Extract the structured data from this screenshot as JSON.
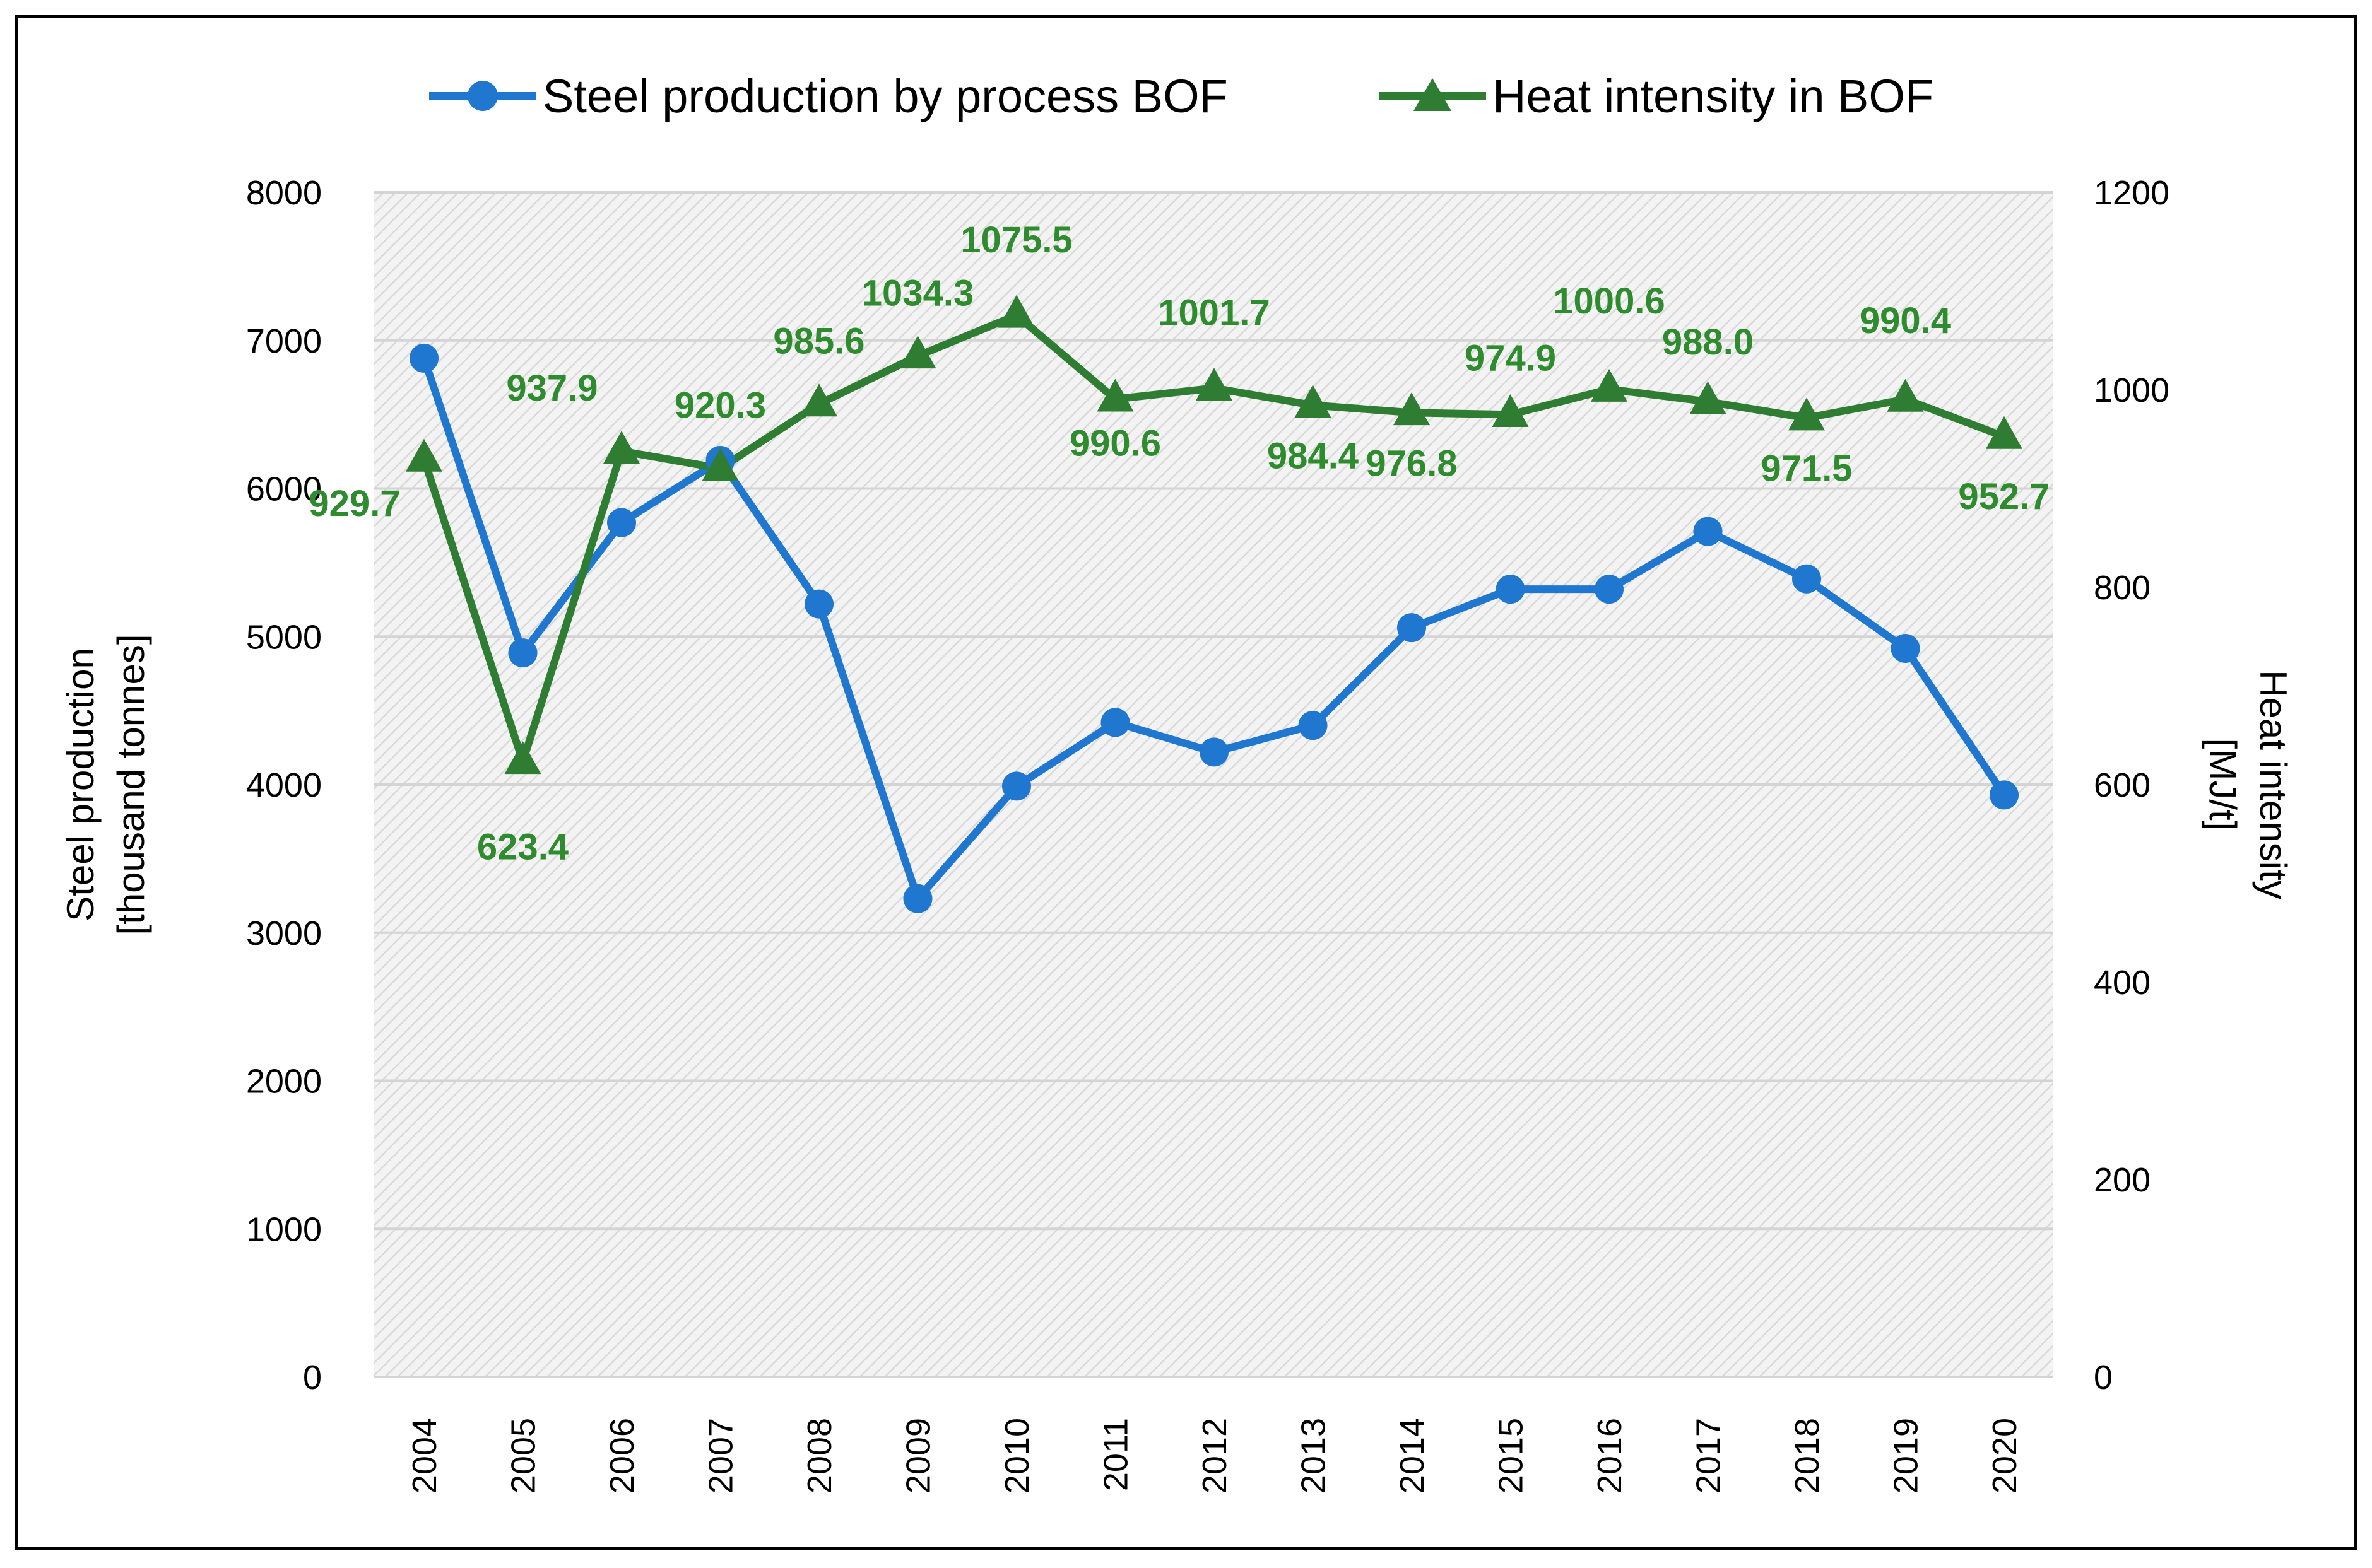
{
  "chart_data": {
    "type": "line",
    "categories": [
      "2004",
      "2005",
      "2006",
      "2007",
      "2008",
      "2009",
      "2010",
      "2011",
      "2012",
      "2013",
      "2014",
      "2015",
      "2016",
      "2017",
      "2018",
      "2019",
      "2020"
    ],
    "series": [
      {
        "name": "Steel production by process BOF",
        "axis": "left",
        "marker": "circle",
        "color": "#1f77d0",
        "values": [
          6880,
          4890,
          5770,
          6190,
          5220,
          3230,
          3990,
          4420,
          4220,
          4400,
          5060,
          5320,
          5320,
          5710,
          5390,
          4920,
          3930
        ]
      },
      {
        "name": "Heat intensity in BOF",
        "axis": "right",
        "marker": "triangle",
        "color": "#2e7d32",
        "values": [
          929.7,
          623.4,
          937.9,
          920.3,
          985.6,
          1034.3,
          1075.5,
          990.6,
          1001.7,
          984.4,
          976.8,
          974.9,
          1000.6,
          988.0,
          971.5,
          990.4,
          952.7
        ],
        "labels": [
          "929.7",
          "623.4",
          "937.9",
          "920.3",
          "985.6",
          "1034.3",
          "1075.5",
          "990.6",
          "1001.7",
          "984.4",
          "976.8",
          "974.9",
          "1000.6",
          "988.0",
          "971.5",
          "990.4",
          "952.7"
        ]
      }
    ],
    "y_left": {
      "label_line1": "Steel production",
      "label_line2": "[thousand tonnes]",
      "min": 0,
      "max": 8000,
      "ticks": [
        "0",
        "1000",
        "2000",
        "3000",
        "4000",
        "5000",
        "6000",
        "7000",
        "8000"
      ]
    },
    "y_right": {
      "label_line1": "Heat intensity",
      "label_line2": "[MJ/t]",
      "min": 0,
      "max": 1200,
      "ticks": [
        "0",
        "200",
        "400",
        "600",
        "800",
        "1000",
        "1200"
      ]
    },
    "xlabel": "",
    "grid": true,
    "legend_position": "top",
    "colors": {
      "blue": "#1f77d0",
      "green": "#2e7d32",
      "label_green": "#2e8b2e",
      "grid": "#d4d4d4",
      "plot_bg": "#ececec"
    }
  }
}
